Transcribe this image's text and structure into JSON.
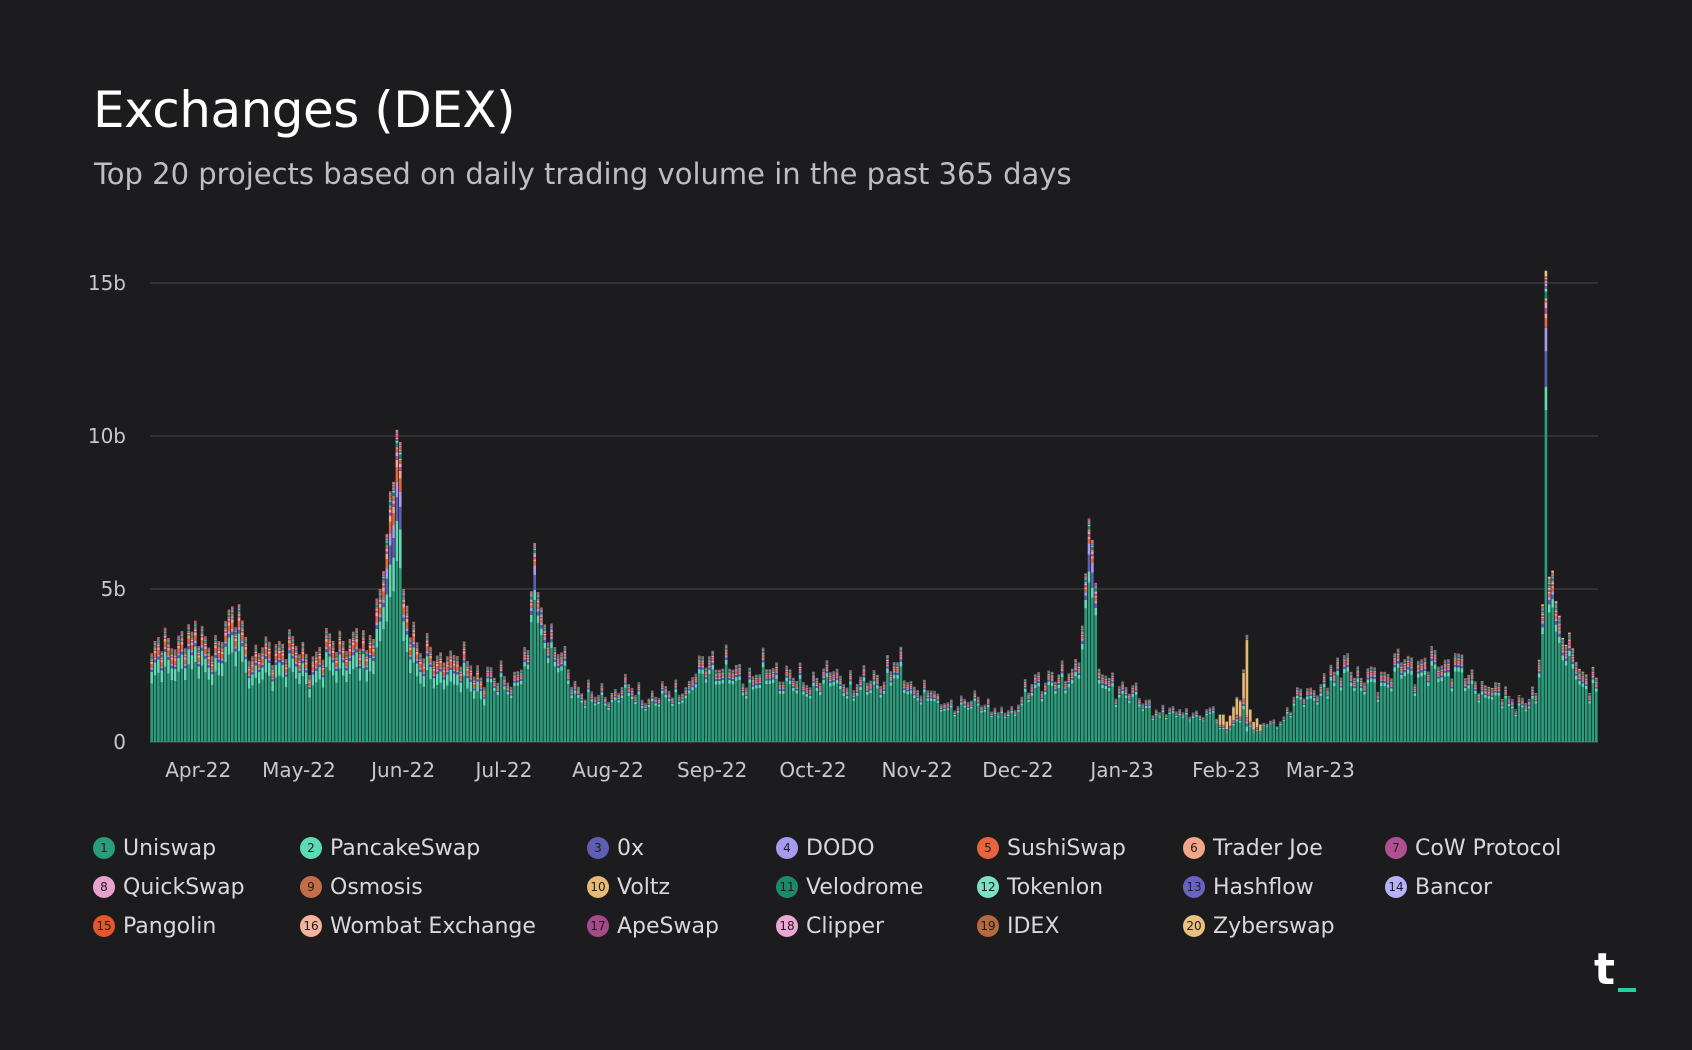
{
  "header": {
    "title": "Exchanges (DEX)",
    "subtitle": "Top 20 projects based on daily trading volume in the past 365 days"
  },
  "chart_data": {
    "type": "bar",
    "stacked": true,
    "title": "Exchanges (DEX)",
    "subtitle": "Top 20 projects based on daily trading volume in the past 365 days",
    "xlabel": "",
    "ylabel": "",
    "ylim": [
      0,
      15000000000
    ],
    "yticks": [
      0,
      5000000000,
      10000000000,
      15000000000
    ],
    "ytick_labels": [
      "0",
      "5b",
      "10b",
      "15b"
    ],
    "xtick_labels": [
      "Apr-22",
      "May-22",
      "Jun-22",
      "Jul-22",
      "Aug-22",
      "Sep-22",
      "Oct-22",
      "Nov-22",
      "Dec-22",
      "Jan-23",
      "Feb-23",
      "Mar-23"
    ],
    "grid": true,
    "legend_position": "bottom",
    "num_days": 365,
    "daily_total_anchors_b": [
      [
        0,
        2.9
      ],
      [
        5,
        3.4
      ],
      [
        12,
        3.6
      ],
      [
        20,
        3.3
      ],
      [
        26,
        4.5
      ],
      [
        30,
        2.8
      ],
      [
        38,
        3.3
      ],
      [
        48,
        2.8
      ],
      [
        54,
        3.3
      ],
      [
        60,
        3.6
      ],
      [
        64,
        3.0
      ],
      [
        68,
        5.0
      ],
      [
        70,
        6.8
      ],
      [
        72,
        8.5
      ],
      [
        73,
        10.2
      ],
      [
        74,
        9.8
      ],
      [
        75,
        5.0
      ],
      [
        80,
        2.9
      ],
      [
        88,
        2.8
      ],
      [
        95,
        2.5
      ],
      [
        102,
        2.1
      ],
      [
        108,
        2.3
      ],
      [
        112,
        3.0
      ],
      [
        114,
        6.5
      ],
      [
        115,
        4.9
      ],
      [
        120,
        3.1
      ],
      [
        126,
        2.0
      ],
      [
        132,
        1.5
      ],
      [
        140,
        1.8
      ],
      [
        150,
        1.5
      ],
      [
        160,
        2.0
      ],
      [
        166,
        2.8
      ],
      [
        172,
        2.4
      ],
      [
        180,
        2.2
      ],
      [
        186,
        2.6
      ],
      [
        192,
        2.0
      ],
      [
        198,
        2.1
      ],
      [
        204,
        2.4
      ],
      [
        210,
        1.9
      ],
      [
        216,
        2.2
      ],
      [
        222,
        2.6
      ],
      [
        228,
        1.7
      ],
      [
        234,
        1.6
      ],
      [
        240,
        1.2
      ],
      [
        246,
        1.5
      ],
      [
        252,
        1.0
      ],
      [
        256,
        1.2
      ],
      [
        262,
        1.9
      ],
      [
        268,
        2.3
      ],
      [
        272,
        2.0
      ],
      [
        276,
        2.6
      ],
      [
        278,
        5.5
      ],
      [
        279,
        7.3
      ],
      [
        280,
        6.6
      ],
      [
        281,
        5.2
      ],
      [
        282,
        2.4
      ],
      [
        290,
        1.8
      ],
      [
        296,
        1.4
      ],
      [
        300,
        1.0
      ],
      [
        306,
        1.1
      ],
      [
        312,
        0.9
      ],
      [
        316,
        1.2
      ],
      [
        320,
        0.7
      ],
      [
        324,
        1.4
      ],
      [
        326,
        3.5
      ],
      [
        327,
        1.1
      ],
      [
        330,
        0.6
      ],
      [
        336,
        0.7
      ],
      [
        340,
        1.5
      ],
      [
        346,
        1.7
      ],
      [
        352,
        2.3
      ],
      [
        356,
        2.9
      ],
      [
        360,
        2.1
      ],
      [
        366,
        2.3
      ],
      [
        372,
        2.6
      ],
      [
        378,
        2.7
      ],
      [
        384,
        2.5
      ],
      [
        388,
        2.9
      ],
      [
        392,
        2.2
      ],
      [
        398,
        1.8
      ],
      [
        404,
        1.5
      ],
      [
        410,
        1.4
      ],
      [
        412,
        1.6
      ],
      [
        414,
        4.5
      ],
      [
        415,
        15.4
      ],
      [
        416,
        5.4
      ],
      [
        417,
        5.6
      ],
      [
        418,
        4.6
      ],
      [
        420,
        3.4
      ],
      [
        424,
        2.6
      ],
      [
        427,
        2.2
      ],
      [
        430,
        2.1
      ]
    ],
    "series": [
      {
        "rank": 1,
        "name": "Uniswap",
        "color": "#2a9d7c"
      },
      {
        "rank": 2,
        "name": "PancakeSwap",
        "color": "#5fd9b6"
      },
      {
        "rank": 3,
        "name": "0x",
        "color": "#5d5fb3"
      },
      {
        "rank": 4,
        "name": "DODO",
        "color": "#a59cf0"
      },
      {
        "rank": 5,
        "name": "SushiSwap",
        "color": "#e8643c"
      },
      {
        "rank": 6,
        "name": "Trader Joe",
        "color": "#f3a58a"
      },
      {
        "rank": 7,
        "name": "CoW Protocol",
        "color": "#b04f93"
      },
      {
        "rank": 8,
        "name": "QuickSwap",
        "color": "#e9a2cf"
      },
      {
        "rank": 9,
        "name": "Osmosis",
        "color": "#c26f47"
      },
      {
        "rank": 10,
        "name": "Voltz",
        "color": "#e7b976"
      },
      {
        "rank": 11,
        "name": "Velodrome",
        "color": "#1b8a67"
      },
      {
        "rank": 12,
        "name": "Tokenlon",
        "color": "#7fe0c3"
      },
      {
        "rank": 13,
        "name": "Hashflow",
        "color": "#6b63c4"
      },
      {
        "rank": 14,
        "name": "Bancor",
        "color": "#b9b1f7"
      },
      {
        "rank": 15,
        "name": "Pangolin",
        "color": "#e2582b"
      },
      {
        "rank": 16,
        "name": "Wombat Exchange",
        "color": "#f6b39b"
      },
      {
        "rank": 17,
        "name": "ApeSwap",
        "color": "#a44a8a"
      },
      {
        "rank": 18,
        "name": "Clipper",
        "color": "#eea7d5"
      },
      {
        "rank": 19,
        "name": "IDEX",
        "color": "#b5693f"
      },
      {
        "rank": 20,
        "name": "Zyberswap",
        "color": "#ecc07d"
      }
    ]
  }
}
